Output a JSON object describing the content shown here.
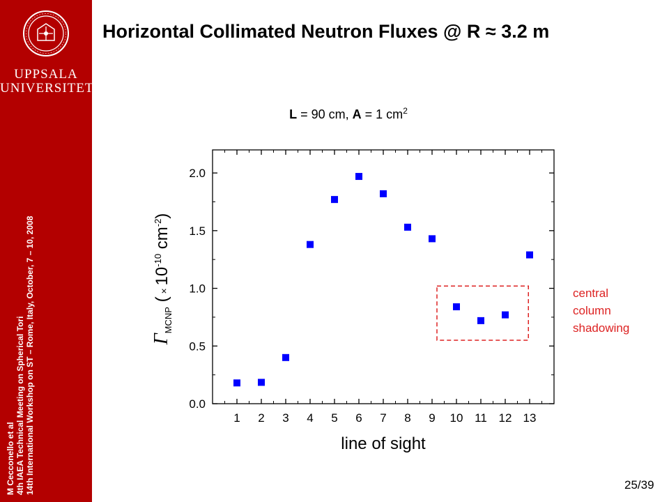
{
  "sidebar": {
    "logo_words": [
      "UPPSALA",
      "UNIVERSITET"
    ],
    "lines": [
      "M Cecconello et al",
      "4th  IAEA Technical Meeting on Spherical Tori",
      "14th  International Workshop on ST – Rome, Italy, October, 7 – 10, 2008"
    ]
  },
  "slide": {
    "title": "Horizontal Collimated Neutron Fluxes @ R  ≈ 3.2 m",
    "page_number": "25/39"
  },
  "colors": {
    "sidebar": "#b30000",
    "marker": "#0000ff",
    "annotation": "#dd2222"
  },
  "chart_data": {
    "type": "scatter",
    "title": "L = 90 cm, A = 1 cm2",
    "xlabel": "line of sight",
    "ylabel": "ΓMCNP (× 10-10 cm-2)",
    "xlim": [
      0,
      14
    ],
    "ylim": [
      0,
      2.2
    ],
    "xticks": [
      1,
      2,
      3,
      4,
      5,
      6,
      7,
      8,
      9,
      10,
      11,
      12,
      13
    ],
    "yticks": [
      0.0,
      0.5,
      1.0,
      1.5,
      2.0
    ],
    "ytick_labels": [
      "0.0",
      "0.5",
      "1.0",
      "1.5",
      "2.0"
    ],
    "x": [
      1,
      2,
      3,
      4,
      5,
      6,
      7,
      8,
      9,
      10,
      11,
      12,
      13
    ],
    "y": [
      0.18,
      0.185,
      0.4,
      1.38,
      1.77,
      1.97,
      1.82,
      1.53,
      1.43,
      0.84,
      0.72,
      0.77,
      1.29
    ],
    "annotation": {
      "lines": [
        "central",
        "column",
        "shadowing"
      ],
      "box_x": [
        9.2,
        12.95
      ],
      "box_y": [
        0.55,
        1.02
      ]
    }
  }
}
